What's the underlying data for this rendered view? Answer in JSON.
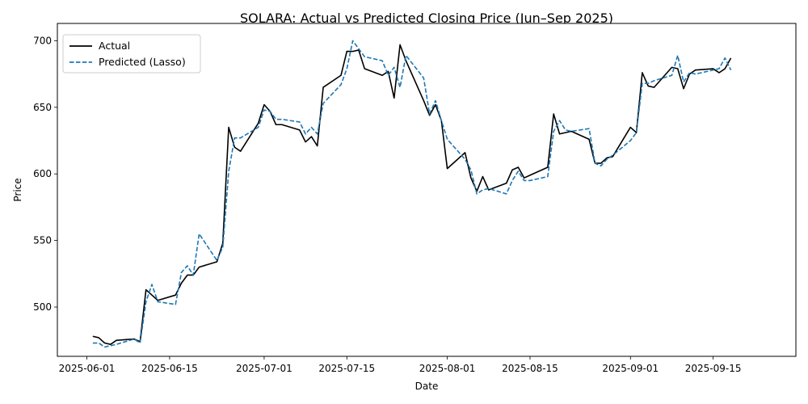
{
  "chart_data": {
    "type": "line",
    "title": "SOLARA: Actual vs Predicted Closing Price (Jun–Sep 2025)",
    "xlabel": "Date",
    "ylabel": "Price",
    "xlim": [
      "2025-05-27",
      "2025-09-29"
    ],
    "ylim": [
      463,
      713
    ],
    "x_ticks": [
      "2025-06-01",
      "2025-06-15",
      "2025-07-01",
      "2025-07-15",
      "2025-08-01",
      "2025-08-15",
      "2025-09-01",
      "2025-09-15"
    ],
    "y_ticks": [
      500,
      550,
      600,
      650,
      700
    ],
    "grid": false,
    "legend": {
      "position": "top-left"
    },
    "series": [
      {
        "name": "Actual",
        "color": "#000000",
        "style": "solid",
        "x": [
          "2025-06-02",
          "2025-06-03",
          "2025-06-04",
          "2025-06-05",
          "2025-06-06",
          "2025-06-09",
          "2025-06-10",
          "2025-06-11",
          "2025-06-12",
          "2025-06-13",
          "2025-06-16",
          "2025-06-17",
          "2025-06-18",
          "2025-06-19",
          "2025-06-20",
          "2025-06-23",
          "2025-06-24",
          "2025-06-25",
          "2025-06-26",
          "2025-06-27",
          "2025-06-30",
          "2025-07-01",
          "2025-07-02",
          "2025-07-03",
          "2025-07-04",
          "2025-07-07",
          "2025-07-08",
          "2025-07-09",
          "2025-07-10",
          "2025-07-11",
          "2025-07-14",
          "2025-07-15",
          "2025-07-16",
          "2025-07-17",
          "2025-07-18",
          "2025-07-21",
          "2025-07-22",
          "2025-07-23",
          "2025-07-24",
          "2025-07-25",
          "2025-07-28",
          "2025-07-29",
          "2025-07-30",
          "2025-07-31",
          "2025-08-01",
          "2025-08-04",
          "2025-08-05",
          "2025-08-06",
          "2025-08-07",
          "2025-08-08",
          "2025-08-11",
          "2025-08-12",
          "2025-08-13",
          "2025-08-14",
          "2025-08-15",
          "2025-08-18",
          "2025-08-19",
          "2025-08-20",
          "2025-08-21",
          "2025-08-22",
          "2025-08-25",
          "2025-08-26",
          "2025-08-27",
          "2025-08-28",
          "2025-08-29",
          "2025-09-01",
          "2025-09-02",
          "2025-09-03",
          "2025-09-04",
          "2025-09-05",
          "2025-09-08",
          "2025-09-09",
          "2025-09-10",
          "2025-09-11",
          "2025-09-12",
          "2025-09-15",
          "2025-09-16",
          "2025-09-17",
          "2025-09-18"
        ],
        "values": [
          478,
          477,
          473,
          472,
          475,
          476,
          474,
          513,
          509,
          505,
          509,
          518,
          524,
          524,
          530,
          534,
          548,
          635,
          620,
          617,
          638,
          652,
          647,
          637,
          637,
          633,
          624,
          628,
          621,
          665,
          674,
          692,
          692,
          693,
          679,
          674,
          677,
          657,
          697,
          685,
          655,
          644,
          652,
          640,
          604,
          616,
          597,
          587,
          598,
          588,
          593,
          603,
          605,
          597,
          599,
          605,
          645,
          630,
          631,
          632,
          626,
          608,
          608,
          612,
          613,
          635,
          631,
          676,
          666,
          665,
          680,
          679,
          664,
          675,
          678,
          679,
          676,
          679,
          687
        ]
      },
      {
        "name": "Predicted (Lasso)",
        "color": "#1f77b4",
        "style": "dashed",
        "x": [
          "2025-06-02",
          "2025-06-03",
          "2025-06-04",
          "2025-06-05",
          "2025-06-06",
          "2025-06-09",
          "2025-06-10",
          "2025-06-11",
          "2025-06-12",
          "2025-06-13",
          "2025-06-16",
          "2025-06-17",
          "2025-06-18",
          "2025-06-19",
          "2025-06-20",
          "2025-06-23",
          "2025-06-24",
          "2025-06-25",
          "2025-06-26",
          "2025-06-27",
          "2025-06-30",
          "2025-07-01",
          "2025-07-02",
          "2025-07-03",
          "2025-07-04",
          "2025-07-07",
          "2025-07-08",
          "2025-07-09",
          "2025-07-10",
          "2025-07-11",
          "2025-07-14",
          "2025-07-15",
          "2025-07-16",
          "2025-07-17",
          "2025-07-18",
          "2025-07-21",
          "2025-07-22",
          "2025-07-23",
          "2025-07-24",
          "2025-07-25",
          "2025-07-28",
          "2025-07-29",
          "2025-07-30",
          "2025-07-31",
          "2025-08-01",
          "2025-08-04",
          "2025-08-05",
          "2025-08-06",
          "2025-08-07",
          "2025-08-08",
          "2025-08-11",
          "2025-08-12",
          "2025-08-13",
          "2025-08-14",
          "2025-08-15",
          "2025-08-18",
          "2025-08-19",
          "2025-08-20",
          "2025-08-21",
          "2025-08-22",
          "2025-08-25",
          "2025-08-26",
          "2025-08-27",
          "2025-08-28",
          "2025-08-29",
          "2025-09-01",
          "2025-09-02",
          "2025-09-03",
          "2025-09-04",
          "2025-09-05",
          "2025-09-08",
          "2025-09-09",
          "2025-09-10",
          "2025-09-11",
          "2025-09-12",
          "2025-09-15",
          "2025-09-16",
          "2025-09-17",
          "2025-09-18"
        ],
        "values": [
          473,
          473,
          470,
          471,
          472,
          476,
          473,
          504,
          517,
          504,
          502,
          526,
          531,
          524,
          555,
          535,
          545,
          602,
          627,
          627,
          635,
          648,
          647,
          641,
          641,
          639,
          630,
          635,
          630,
          653,
          667,
          679,
          700,
          694,
          688,
          685,
          674,
          680,
          665,
          689,
          672,
          645,
          655,
          640,
          626,
          611,
          603,
          585,
          588,
          589,
          585,
          595,
          602,
          595,
          595,
          598,
          632,
          640,
          633,
          632,
          634,
          608,
          606,
          611,
          614,
          625,
          631,
          668,
          668,
          670,
          674,
          689,
          669,
          676,
          675,
          678,
          679,
          687,
          678
        ]
      }
    ]
  }
}
